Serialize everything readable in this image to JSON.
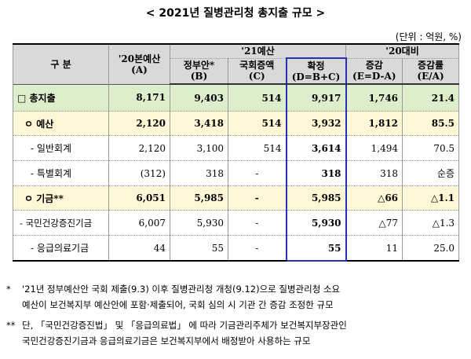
{
  "title": "< 2021년 질병관리청 총지출 규모 >",
  "unit": "(단위 : 억원, %)",
  "headers": {
    "category": "구   분",
    "col_2020_line1": "'20본예산",
    "col_2020_line2": "(A)",
    "group_2021": "'21예산",
    "gov_line1": "정부안*",
    "gov_line2": "(B)",
    "national_line1": "국회증액",
    "national_line2": "(C)",
    "final_line1": "확정",
    "final_line2": "(D=B+C)",
    "group_vs2020": "'20대비",
    "inc_line1": "증감",
    "inc_line2": "(E=D-A)",
    "rate_line1": "증감률",
    "rate_line2": "(E/A)"
  },
  "rows": [
    {
      "label": "□  총지출",
      "a": "8,171",
      "b": "9,403",
      "c": "514",
      "d": "9,917",
      "e": "1,746",
      "rate": "21.4"
    },
    {
      "label": "ㅇ  예산",
      "a": "2,120",
      "b": "3,418",
      "c": "514",
      "d": "3,932",
      "e": "1,812",
      "rate": "85.5"
    },
    {
      "label": "-  일반회계",
      "a": "2,120",
      "b": "3,100",
      "c": "514",
      "d": "3,614",
      "e": "1,494",
      "rate": "70.5"
    },
    {
      "label": "-  특별회계",
      "a": "(312)",
      "b": "318",
      "c": "-",
      "d": "318",
      "e": "318",
      "rate": "순증"
    },
    {
      "label": "ㅇ  기금**",
      "a": "6,051",
      "b": "5,985",
      "c": "-",
      "d": "5,985",
      "e": "△66",
      "rate": "△1.1"
    },
    {
      "label": "-  국민건강증진기금",
      "a": "6,007",
      "b": "5,930",
      "c": "-",
      "d": "5,930",
      "e": "△77",
      "rate": "△1.3"
    },
    {
      "label": "-  응급의료기금",
      "a": "44",
      "b": "55",
      "c": "-",
      "d": "55",
      "e": "11",
      "rate": "25.0"
    }
  ],
  "notes": [
    {
      "mark": "*",
      "line1": "'21년 정부예산안 국회 제출(9.3) 이후 질병관리청 개청(9.12)으로 질병관리청 소요",
      "line2": "예산이 보건복지부 예산안에 포함·제출되어, 국회 심의 시 기관 간 증감 조정한 규모"
    },
    {
      "mark": "**",
      "line1": "단, 「국민건강증진법」 및 「응급의료법」 에 따라 기금관리주체가 보건복지부장관인",
      "line2": "국민건강증진기금과 응급의료기금은 보건복지부에서 배정받아 사용하는 규모"
    }
  ]
}
